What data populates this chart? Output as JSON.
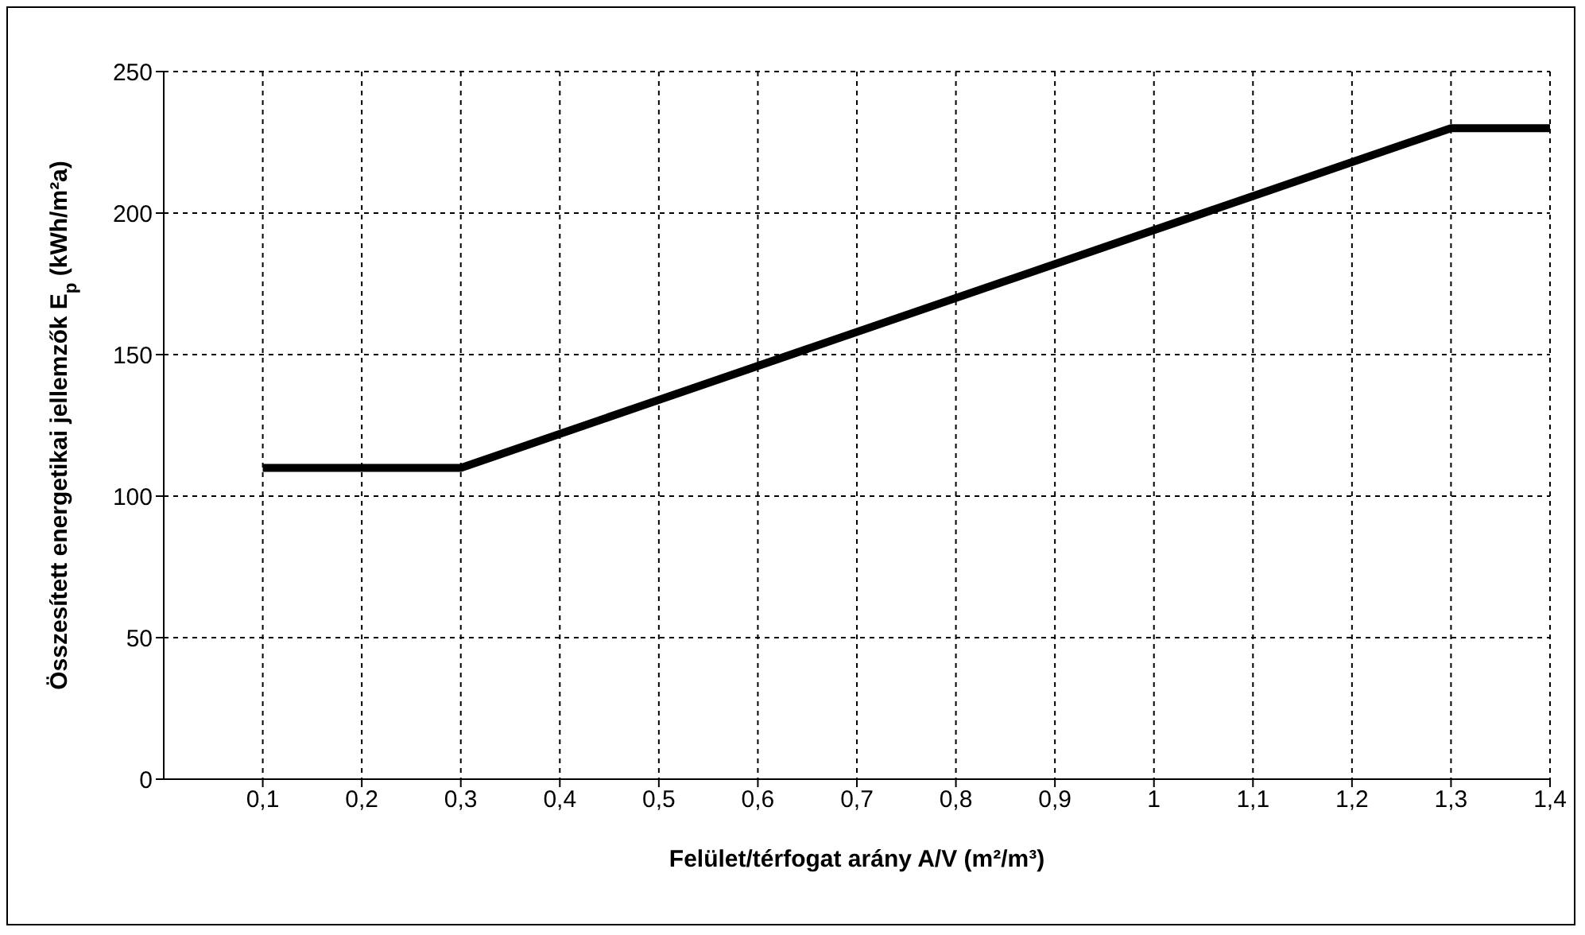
{
  "chart_data": {
    "type": "line",
    "xlabel": "Felület/térfogat arány A/V (m²/m³)",
    "ylabel": "Összesített energetikai jellemzők E$_{p}$ (kWh/m²a)",
    "x": [
      0.1,
      0.3,
      1.3,
      1.4
    ],
    "series": [
      {
        "color": "#000000",
        "values": [
          110,
          110,
          230,
          230
        ]
      }
    ],
    "xlim": [
      0,
      1.4
    ],
    "xticks": [
      {
        "value": 0.1,
        "label": "0,1"
      },
      {
        "value": 0.2,
        "label": "0,2"
      },
      {
        "value": 0.3,
        "label": "0,3"
      },
      {
        "value": 0.4,
        "label": "0,4"
      },
      {
        "value": 0.5,
        "label": "0,5"
      },
      {
        "value": 0.6,
        "label": "0,6"
      },
      {
        "value": 0.7,
        "label": "0,7"
      },
      {
        "value": 0.8,
        "label": "0,8"
      },
      {
        "value": 0.9,
        "label": "0,9"
      },
      1,
      {
        "value": 1.1,
        "label": "1,1"
      },
      {
        "value": 1.2,
        "label": "1,2"
      },
      {
        "value": 1.3,
        "label": "1,3"
      },
      {
        "value": 1.4,
        "label": "1,4"
      }
    ],
    "ylim": [
      0,
      250
    ],
    "yticks": [
      0,
      50,
      100,
      150,
      200,
      250
    ],
    "grid": true,
    "marker": "none",
    "line_style": "solid",
    "legend": false
  }
}
